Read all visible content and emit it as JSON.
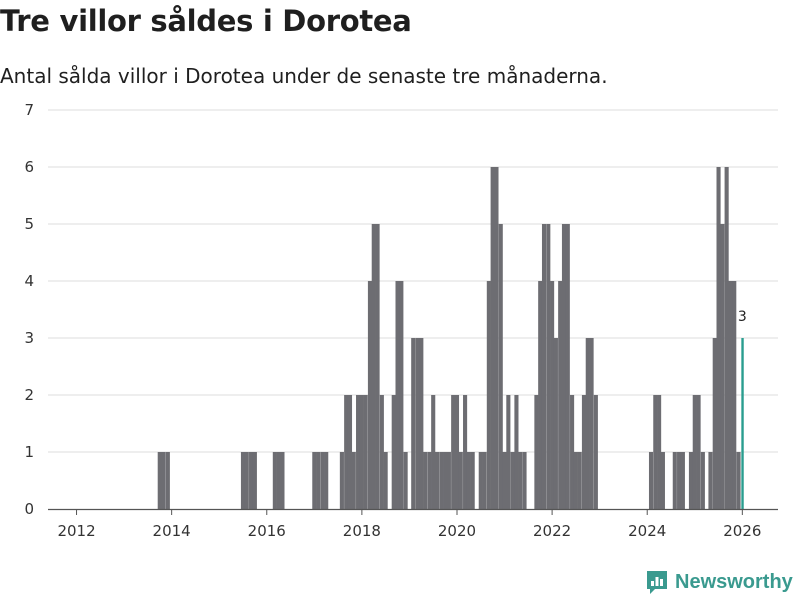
{
  "title": "Tre villor såldes i Dorotea",
  "subtitle": "Antal sålda villor i Dorotea under de senaste tre månaderna.",
  "brand": {
    "name": "Newsworthy",
    "color": "#3a9a8f"
  },
  "chart_data": {
    "type": "bar",
    "title": "Tre villor såldes i Dorotea",
    "xlabel": "",
    "ylabel": "",
    "xlim": [
      2011.4,
      2026.75
    ],
    "ylim": [
      0,
      7
    ],
    "grid": true,
    "bar_color": "#6d6d72",
    "highlight_color": "#2a9d8f",
    "yticks": [
      "0",
      "1",
      "2",
      "3",
      "4",
      "5",
      "6",
      "7"
    ],
    "xticks": [
      "2012",
      "2014",
      "2016",
      "2018",
      "2020",
      "2022",
      "2024",
      "2026"
    ],
    "annotation": "3",
    "series": [
      {
        "name": "Antal sålda villor",
        "points": [
          [
            2013.75,
            1
          ],
          [
            2013.83,
            1
          ],
          [
            2013.92,
            1
          ],
          [
            2015.5,
            1
          ],
          [
            2015.58,
            1
          ],
          [
            2015.67,
            1
          ],
          [
            2015.75,
            1
          ],
          [
            2016.17,
            1
          ],
          [
            2016.25,
            1
          ],
          [
            2016.33,
            1
          ],
          [
            2017.0,
            1
          ],
          [
            2017.08,
            1
          ],
          [
            2017.17,
            1
          ],
          [
            2017.25,
            1
          ],
          [
            2017.58,
            1
          ],
          [
            2017.67,
            2
          ],
          [
            2017.75,
            2
          ],
          [
            2017.83,
            1
          ],
          [
            2017.92,
            2
          ],
          [
            2018.0,
            2
          ],
          [
            2018.08,
            2
          ],
          [
            2018.17,
            4
          ],
          [
            2018.25,
            5
          ],
          [
            2018.33,
            5
          ],
          [
            2018.42,
            2
          ],
          [
            2018.5,
            1
          ],
          [
            2018.67,
            2
          ],
          [
            2018.75,
            4
          ],
          [
            2018.83,
            4
          ],
          [
            2018.92,
            1
          ],
          [
            2019.08,
            3
          ],
          [
            2019.17,
            3
          ],
          [
            2019.25,
            3
          ],
          [
            2019.33,
            1
          ],
          [
            2019.42,
            1
          ],
          [
            2019.5,
            2
          ],
          [
            2019.58,
            1
          ],
          [
            2019.67,
            1
          ],
          [
            2019.75,
            1
          ],
          [
            2019.83,
            1
          ],
          [
            2019.92,
            2
          ],
          [
            2020.0,
            2
          ],
          [
            2020.08,
            1
          ],
          [
            2020.17,
            2
          ],
          [
            2020.25,
            1
          ],
          [
            2020.33,
            1
          ],
          [
            2020.5,
            1
          ],
          [
            2020.58,
            1
          ],
          [
            2020.67,
            4
          ],
          [
            2020.75,
            6
          ],
          [
            2020.83,
            6
          ],
          [
            2020.92,
            5
          ],
          [
            2021.0,
            1
          ],
          [
            2021.08,
            2
          ],
          [
            2021.17,
            1
          ],
          [
            2021.25,
            2
          ],
          [
            2021.33,
            1
          ],
          [
            2021.42,
            1
          ],
          [
            2021.67,
            2
          ],
          [
            2021.75,
            4
          ],
          [
            2021.83,
            5
          ],
          [
            2021.92,
            5
          ],
          [
            2022.0,
            4
          ],
          [
            2022.08,
            3
          ],
          [
            2022.17,
            4
          ],
          [
            2022.25,
            5
          ],
          [
            2022.33,
            5
          ],
          [
            2022.42,
            2
          ],
          [
            2022.5,
            1
          ],
          [
            2022.58,
            1
          ],
          [
            2022.67,
            2
          ],
          [
            2022.75,
            3
          ],
          [
            2022.83,
            3
          ],
          [
            2022.92,
            2
          ],
          [
            2024.08,
            1
          ],
          [
            2024.17,
            2
          ],
          [
            2024.25,
            2
          ],
          [
            2024.33,
            1
          ],
          [
            2024.58,
            1
          ],
          [
            2024.67,
            1
          ],
          [
            2024.75,
            1
          ],
          [
            2024.92,
            1
          ],
          [
            2025.0,
            2
          ],
          [
            2025.08,
            2
          ],
          [
            2025.17,
            1
          ],
          [
            2025.33,
            1
          ],
          [
            2025.42,
            3
          ],
          [
            2025.5,
            6
          ],
          [
            2025.58,
            5
          ],
          [
            2025.67,
            6
          ],
          [
            2025.75,
            4
          ],
          [
            2025.83,
            4
          ],
          [
            2025.92,
            1
          ]
        ]
      },
      {
        "name": "Senaste tre månaderna",
        "highlight": true,
        "points": [
          [
            2026.0,
            3
          ]
        ]
      }
    ]
  }
}
